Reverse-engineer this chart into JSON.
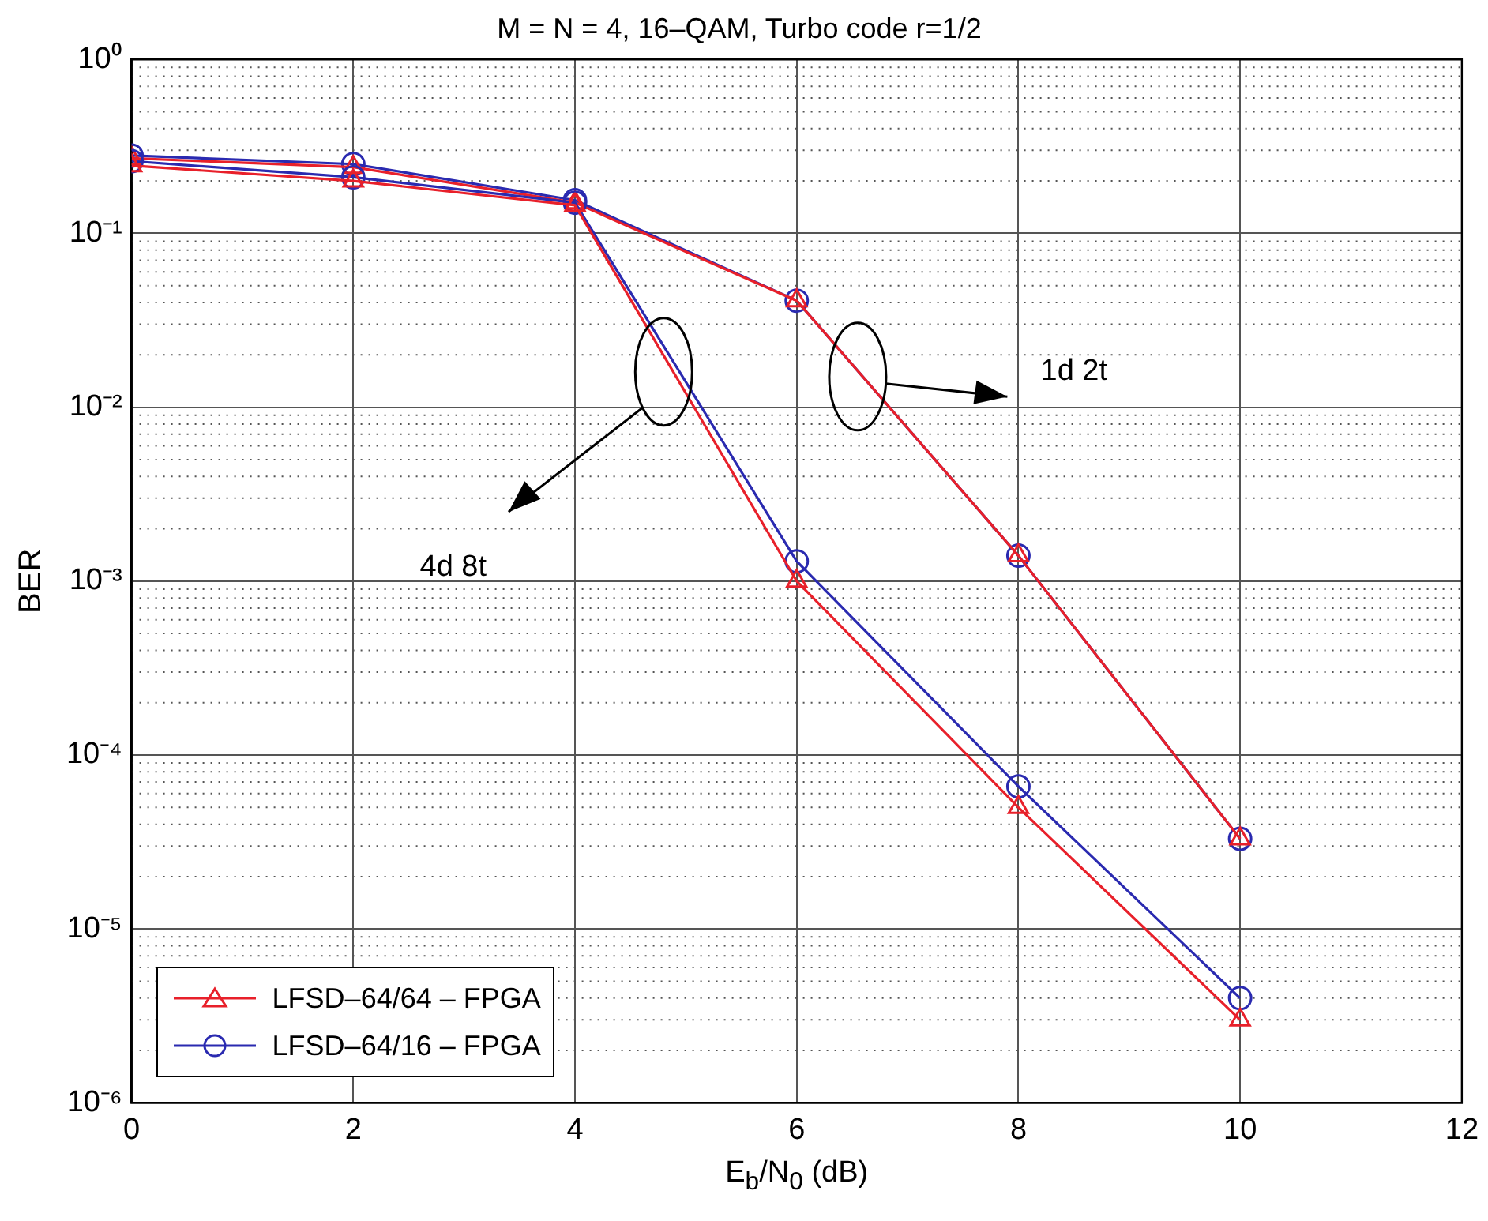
{
  "chart_data": {
    "type": "line",
    "title": "M = N = 4, 16–QAM, Turbo code r=1/2",
    "xlabel": "E$_{b}$/N$_{0}$ (dB)",
    "ylabel": "BER",
    "x": [
      0,
      2,
      4,
      6,
      8,
      10
    ],
    "series": [
      {
        "name": "LFSD–64/64 – FPGA",
        "color": "#e8202a",
        "marker": "triangle",
        "values": [
          0.245,
          0.2,
          0.145,
          0.001,
          5e-05,
          3e-06
        ]
      },
      {
        "name": "LFSD–64/16 – FPGA",
        "color": "#2a2ab0",
        "marker": "circle",
        "values": [
          0.26,
          0.21,
          0.15,
          0.0013,
          6.6e-05,
          4e-06
        ]
      },
      {
        "color": "#e8202a",
        "marker": "triangle",
        "values": [
          0.27,
          0.24,
          0.15,
          0.041,
          0.0014,
          3.3e-05
        ]
      },
      {
        "color": "#2a2ab0",
        "marker": "circle",
        "values": [
          0.28,
          0.25,
          0.155,
          0.041,
          0.0014,
          3.3e-05
        ]
      }
    ],
    "xlim": [
      0,
      12
    ],
    "xticks": [
      0,
      2,
      4,
      6,
      8,
      10,
      12
    ],
    "ylim": [
      1e-06,
      1
    ],
    "yticks": [
      {
        "value": 1e-06,
        "label": "10⁻⁶"
      },
      {
        "value": 1e-05,
        "label": "10⁻⁵"
      },
      {
        "value": 0.0001,
        "label": "10⁻⁴"
      },
      {
        "value": 0.001,
        "label": "10⁻³"
      },
      {
        "value": 0.01,
        "label": "10⁻²"
      },
      {
        "value": 0.1,
        "label": "10⁻¹"
      },
      {
        "value": 1,
        "label": "10⁰"
      }
    ],
    "log": "y",
    "grid": true,
    "legend": "bottom left",
    "line_style": "solid",
    "annotations": [
      "1d 2t",
      "4d 8t"
    ]
  }
}
